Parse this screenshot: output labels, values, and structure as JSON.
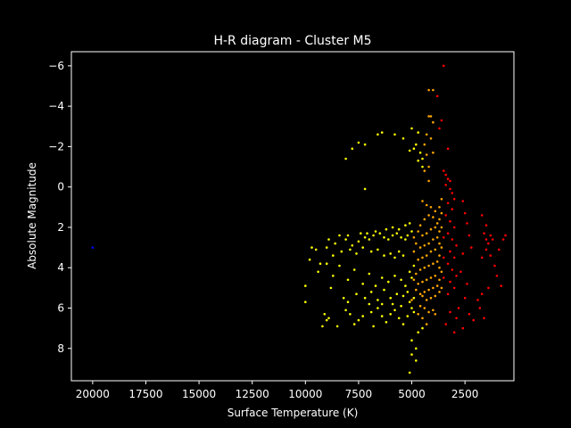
{
  "chart_data": {
    "type": "scatter",
    "title": "H-R diagram - Cluster M5",
    "xlabel": "Surface Temperature (K)",
    "ylabel": "Absolute Magnitude",
    "xlim": [
      21000,
      200
    ],
    "ylim": [
      9.6,
      -6.7
    ],
    "x_inverted": true,
    "y_inverted": true,
    "xticks": [
      20000,
      17500,
      15000,
      12500,
      10000,
      7500,
      5000,
      2500
    ],
    "xtick_labels": [
      "20000",
      "17500",
      "15000",
      "12500",
      "10000",
      "7500",
      "5000",
      "2500"
    ],
    "yticks": [
      -6,
      -4,
      -2,
      0,
      2,
      4,
      6,
      8
    ],
    "ytick_labels": [
      "−6",
      "−4",
      "−2",
      "0",
      "2",
      "4",
      "6",
      "8"
    ],
    "grid": false,
    "background": "#000000",
    "series": [
      {
        "color": "#0000ff",
        "points": [
          [
            20000,
            3.0
          ]
        ]
      },
      {
        "color": "#ffff00",
        "points": [
          [
            9000,
            3.0
          ],
          [
            8600,
            2.8
          ],
          [
            8100,
            2.6
          ],
          [
            7800,
            2.9
          ],
          [
            7500,
            2.7
          ],
          [
            7200,
            2.5
          ],
          [
            7000,
            2.6
          ],
          [
            6800,
            2.4
          ],
          [
            6500,
            2.3
          ],
          [
            6300,
            2.5
          ],
          [
            6100,
            2.6
          ],
          [
            5900,
            2.4
          ],
          [
            5700,
            2.3
          ],
          [
            5500,
            2.5
          ],
          [
            5300,
            2.6
          ],
          [
            8700,
            3.4
          ],
          [
            8300,
            3.2
          ],
          [
            7900,
            3.1
          ],
          [
            7600,
            3.3
          ],
          [
            7300,
            3.0
          ],
          [
            6900,
            3.2
          ],
          [
            6600,
            3.1
          ],
          [
            6300,
            3.4
          ],
          [
            6000,
            3.3
          ],
          [
            5800,
            3.5
          ],
          [
            5600,
            3.2
          ],
          [
            5400,
            3.4
          ],
          [
            9500,
            3.1
          ],
          [
            9300,
            3.8
          ],
          [
            9700,
            3.0
          ],
          [
            8900,
            2.6
          ],
          [
            8400,
            2.4
          ],
          [
            8000,
            2.4
          ],
          [
            7400,
            2.3
          ],
          [
            7100,
            2.3
          ],
          [
            6700,
            2.2
          ],
          [
            6200,
            2.1
          ],
          [
            5900,
            2.0
          ],
          [
            5600,
            2.1
          ],
          [
            5300,
            1.9
          ],
          [
            5100,
            1.8
          ],
          [
            5000,
            2.2
          ],
          [
            5200,
            2.4
          ],
          [
            9800,
            3.6
          ],
          [
            9400,
            4.2
          ],
          [
            9000,
            3.8
          ],
          [
            8700,
            4.4
          ],
          [
            8400,
            3.9
          ],
          [
            8000,
            4.6
          ],
          [
            7700,
            4.1
          ],
          [
            7300,
            4.8
          ],
          [
            7000,
            4.3
          ],
          [
            6700,
            4.9
          ],
          [
            6400,
            4.5
          ],
          [
            6100,
            4.7
          ],
          [
            5800,
            4.4
          ],
          [
            5500,
            4.6
          ],
          [
            5300,
            4.9
          ],
          [
            5100,
            4.2
          ],
          [
            4900,
            3.9
          ],
          [
            5000,
            4.5
          ],
          [
            5200,
            5.2
          ],
          [
            5400,
            5.4
          ],
          [
            5700,
            5.3
          ],
          [
            6000,
            5.5
          ],
          [
            6300,
            5.1
          ],
          [
            6600,
            5.6
          ],
          [
            6900,
            5.2
          ],
          [
            7200,
            5.5
          ],
          [
            7600,
            5.3
          ],
          [
            8000,
            5.7
          ],
          [
            9100,
            6.3
          ],
          [
            9000,
            6.6
          ],
          [
            8900,
            6.5
          ],
          [
            9200,
            6.9
          ],
          [
            8100,
            6.1
          ],
          [
            7900,
            6.3
          ],
          [
            7500,
            6.6
          ],
          [
            7300,
            6.4
          ],
          [
            6900,
            6.2
          ],
          [
            6600,
            6.0
          ],
          [
            6400,
            6.4
          ],
          [
            6200,
            6.7
          ],
          [
            6000,
            6.3
          ],
          [
            5800,
            6.1
          ],
          [
            5600,
            6.5
          ],
          [
            5400,
            6.8
          ],
          [
            5200,
            6.4
          ],
          [
            5000,
            6.0
          ],
          [
            4900,
            6.2
          ],
          [
            7700,
            6.8
          ],
          [
            8500,
            6.9
          ],
          [
            6800,
            6.9
          ],
          [
            6400,
            5.8
          ],
          [
            5900,
            5.8
          ],
          [
            5500,
            5.9
          ],
          [
            5100,
            5.7
          ],
          [
            4900,
            5.5
          ],
          [
            8800,
            5.0
          ],
          [
            8200,
            5.5
          ],
          [
            7000,
            5.8
          ],
          [
            10000,
            5.7
          ],
          [
            10000,
            4.9
          ],
          [
            8100,
            -1.4
          ],
          [
            7800,
            -1.9
          ],
          [
            7500,
            -2.2
          ],
          [
            7200,
            -2.1
          ],
          [
            6600,
            -2.6
          ],
          [
            6400,
            -2.7
          ],
          [
            5800,
            -2.6
          ],
          [
            5400,
            -2.4
          ],
          [
            5000,
            -2.9
          ],
          [
            4700,
            -2.7
          ],
          [
            4800,
            -2.1
          ],
          [
            4600,
            -1.7
          ],
          [
            4500,
            -1.4
          ],
          [
            4700,
            -1.3
          ],
          [
            4500,
            -1.0
          ],
          [
            4900,
            -1.9
          ],
          [
            5100,
            -1.8
          ],
          [
            7200,
            0.1
          ],
          [
            5000,
            7.6
          ],
          [
            4800,
            8.0
          ],
          [
            5000,
            8.3
          ],
          [
            4800,
            8.6
          ],
          [
            5100,
            9.2
          ],
          [
            4500,
            7.0
          ],
          [
            4700,
            7.2
          ]
        ]
      },
      {
        "color": "#ffa500",
        "points": [
          [
            4200,
            -3.5
          ],
          [
            4100,
            -3.5
          ],
          [
            4200,
            -4.8
          ],
          [
            4000,
            -4.8
          ],
          [
            4000,
            -3.2
          ],
          [
            4300,
            -2.6
          ],
          [
            4400,
            -2.1
          ],
          [
            4100,
            -2.4
          ],
          [
            4300,
            -1.6
          ],
          [
            4000,
            -1.7
          ],
          [
            4200,
            -1.0
          ],
          [
            4400,
            -0.8
          ],
          [
            4500,
            0.7
          ],
          [
            4300,
            0.9
          ],
          [
            4100,
            1.0
          ],
          [
            3900,
            1.2
          ],
          [
            4200,
            1.4
          ],
          [
            4000,
            1.5
          ],
          [
            3800,
            1.8
          ],
          [
            4400,
            1.6
          ],
          [
            4600,
            1.9
          ],
          [
            3900,
            2.0
          ],
          [
            4100,
            2.1
          ],
          [
            4300,
            2.3
          ],
          [
            4500,
            2.4
          ],
          [
            4700,
            2.2
          ],
          [
            3800,
            2.5
          ],
          [
            4000,
            2.6
          ],
          [
            4200,
            2.8
          ],
          [
            4400,
            2.9
          ],
          [
            4600,
            3.0
          ],
          [
            4800,
            2.8
          ],
          [
            3900,
            3.1
          ],
          [
            4100,
            3.2
          ],
          [
            4300,
            3.4
          ],
          [
            4500,
            3.5
          ],
          [
            4700,
            3.6
          ],
          [
            3800,
            3.7
          ],
          [
            4000,
            3.8
          ],
          [
            4200,
            3.9
          ],
          [
            4400,
            4.0
          ],
          [
            4600,
            4.1
          ],
          [
            4800,
            4.3
          ],
          [
            3900,
            4.4
          ],
          [
            4100,
            4.5
          ],
          [
            4300,
            4.6
          ],
          [
            4500,
            4.7
          ],
          [
            4700,
            4.8
          ],
          [
            3800,
            4.9
          ],
          [
            4000,
            5.0
          ],
          [
            4200,
            5.1
          ],
          [
            4400,
            5.2
          ],
          [
            4600,
            5.3
          ],
          [
            4800,
            5.1
          ],
          [
            3900,
            5.4
          ],
          [
            4100,
            5.5
          ],
          [
            4300,
            5.6
          ],
          [
            4500,
            5.4
          ],
          [
            3700,
            1.0
          ],
          [
            3700,
            1.6
          ],
          [
            3700,
            2.2
          ],
          [
            3700,
            2.8
          ],
          [
            3700,
            3.4
          ],
          [
            3700,
            4.0
          ],
          [
            3700,
            4.6
          ],
          [
            3700,
            5.2
          ],
          [
            3600,
            0.6
          ],
          [
            3600,
            1.3
          ],
          [
            3600,
            2.0
          ],
          [
            3600,
            3.0
          ],
          [
            3600,
            4.2
          ],
          [
            3600,
            5.0
          ],
          [
            4900,
            4.6
          ],
          [
            4900,
            3.2
          ],
          [
            4900,
            2.5
          ],
          [
            5000,
            5.6
          ],
          [
            4600,
            5.9
          ],
          [
            4400,
            6.0
          ],
          [
            4200,
            6.2
          ],
          [
            4000,
            6.1
          ],
          [
            4500,
            6.5
          ],
          [
            4300,
            6.8
          ],
          [
            3900,
            6.3
          ],
          [
            4700,
            6.3
          ],
          [
            4200,
            -0.3
          ]
        ]
      },
      {
        "color": "#ff0000",
        "points": [
          [
            3500,
            -6.0
          ],
          [
            3800,
            -4.5
          ],
          [
            3600,
            -3.3
          ],
          [
            3700,
            -2.9
          ],
          [
            3300,
            -1.9
          ],
          [
            3500,
            -0.8
          ],
          [
            3400,
            -0.6
          ],
          [
            3300,
            -0.4
          ],
          [
            3200,
            -0.3
          ],
          [
            3400,
            -0.1
          ],
          [
            3200,
            0.1
          ],
          [
            3100,
            0.3
          ],
          [
            3000,
            0.6
          ],
          [
            3300,
            0.8
          ],
          [
            3100,
            1.1
          ],
          [
            3400,
            1.4
          ],
          [
            3200,
            1.7
          ],
          [
            3000,
            2.0
          ],
          [
            3300,
            2.3
          ],
          [
            3100,
            2.6
          ],
          [
            2900,
            2.9
          ],
          [
            3200,
            3.2
          ],
          [
            3000,
            3.5
          ],
          [
            3300,
            3.8
          ],
          [
            3100,
            4.1
          ],
          [
            2900,
            4.4
          ],
          [
            3200,
            4.7
          ],
          [
            3000,
            5.0
          ],
          [
            3300,
            5.3
          ],
          [
            3500,
            2.5
          ],
          [
            3500,
            3.5
          ],
          [
            3500,
            4.5
          ],
          [
            2600,
            0.7
          ],
          [
            2500,
            1.3
          ],
          [
            2400,
            1.8
          ],
          [
            2300,
            2.4
          ],
          [
            2200,
            3.0
          ],
          [
            2600,
            3.3
          ],
          [
            2700,
            4.2
          ],
          [
            2400,
            4.8
          ],
          [
            2500,
            5.5
          ],
          [
            2800,
            6.0
          ],
          [
            2300,
            6.3
          ],
          [
            2100,
            6.6
          ],
          [
            2600,
            7.0
          ],
          [
            2900,
            6.5
          ],
          [
            3200,
            6.2
          ],
          [
            3400,
            6.8
          ],
          [
            3000,
            7.2
          ],
          [
            1700,
            1.4
          ],
          [
            1600,
            2.3
          ],
          [
            1500,
            2.6
          ],
          [
            1400,
            2.8
          ],
          [
            1300,
            2.4
          ],
          [
            1200,
            2.6
          ],
          [
            1700,
            3.5
          ],
          [
            1500,
            3.1
          ],
          [
            1300,
            3.4
          ],
          [
            1100,
            3.9
          ],
          [
            1000,
            4.4
          ],
          [
            1400,
            5.0
          ],
          [
            1700,
            5.3
          ],
          [
            1900,
            5.6
          ],
          [
            1800,
            6.0
          ],
          [
            1600,
            6.5
          ],
          [
            700,
            2.6
          ],
          [
            600,
            2.4
          ],
          [
            900,
            3.1
          ],
          [
            800,
            4.9
          ],
          [
            1500,
            1.9
          ]
        ]
      }
    ]
  }
}
